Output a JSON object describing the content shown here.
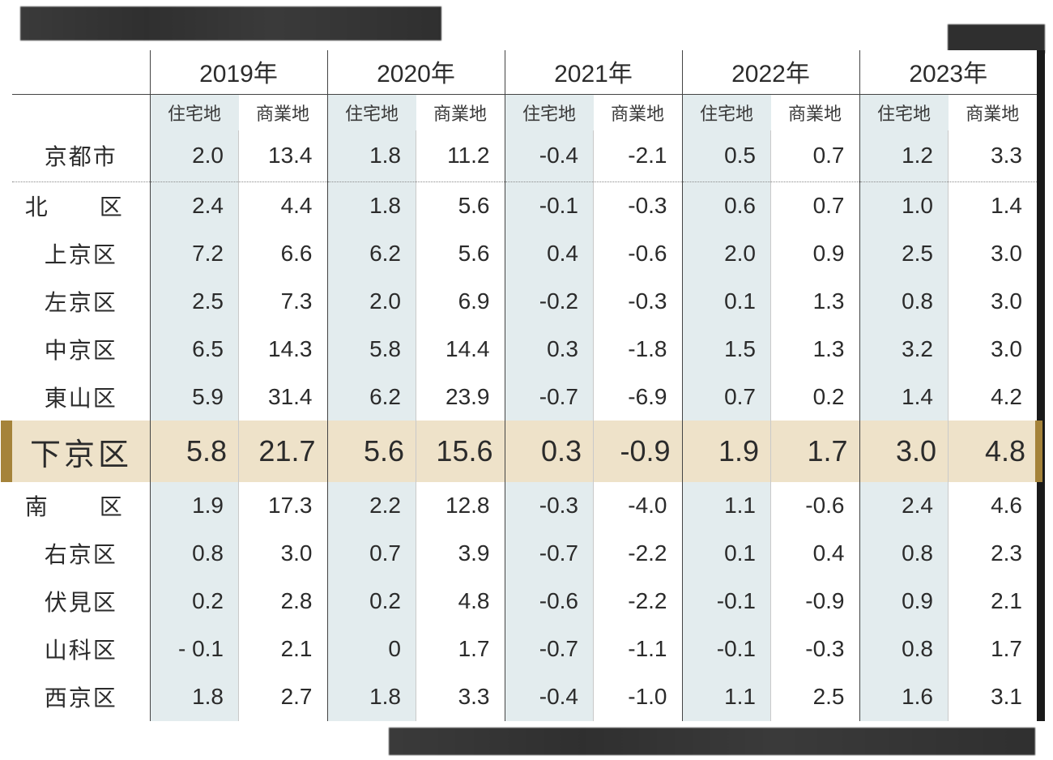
{
  "table": {
    "type": "table",
    "years": [
      "2019年",
      "2020年",
      "2021年",
      "2022年",
      "2023年"
    ],
    "sub_columns": [
      "住宅地",
      "商業地"
    ],
    "row_label_header": "",
    "rows": [
      {
        "label": "京都市",
        "values": [
          "2.0",
          "13.4",
          "1.8",
          "11.2",
          "-0.4",
          "-2.1",
          "0.5",
          "0.7",
          "1.2",
          "3.3"
        ],
        "class": "row-city"
      },
      {
        "label": "北　区",
        "values": [
          "2.4",
          "4.4",
          "1.8",
          "5.6",
          "-0.1",
          "-0.3",
          "0.6",
          "0.7",
          "1.0",
          "1.4"
        ],
        "label_class": "spaced-2"
      },
      {
        "label": "上京区",
        "values": [
          "7.2",
          "6.6",
          "6.2",
          "5.6",
          "0.4",
          "-0.6",
          "2.0",
          "0.9",
          "2.5",
          "3.0"
        ]
      },
      {
        "label": "左京区",
        "values": [
          "2.5",
          "7.3",
          "2.0",
          "6.9",
          "-0.2",
          "-0.3",
          "0.1",
          "1.3",
          "0.8",
          "3.0"
        ]
      },
      {
        "label": "中京区",
        "values": [
          "6.5",
          "14.3",
          "5.8",
          "14.4",
          "0.3",
          "-1.8",
          "1.5",
          "1.3",
          "3.2",
          "3.0"
        ]
      },
      {
        "label": "東山区",
        "values": [
          "5.9",
          "31.4",
          "6.2",
          "23.9",
          "-0.7",
          "-6.9",
          "0.7",
          "0.2",
          "1.4",
          "4.2"
        ]
      },
      {
        "label": "下京区",
        "values": [
          "5.8",
          "21.7",
          "5.6",
          "15.6",
          "0.3",
          "-0.9",
          "1.9",
          "1.7",
          "3.0",
          "4.8"
        ],
        "class": "row-highlight"
      },
      {
        "label": "南　区",
        "values": [
          "1.9",
          "17.3",
          "2.2",
          "12.8",
          "-0.3",
          "-4.0",
          "1.1",
          "-0.6",
          "2.4",
          "4.6"
        ],
        "label_class": "spaced-2"
      },
      {
        "label": "右京区",
        "values": [
          "0.8",
          "3.0",
          "0.7",
          "3.9",
          "-0.7",
          "-2.2",
          "0.1",
          "0.4",
          "0.8",
          "2.3"
        ]
      },
      {
        "label": "伏見区",
        "values": [
          "0.2",
          "2.8",
          "0.2",
          "4.8",
          "-0.6",
          "-2.2",
          "-0.1",
          "-0.9",
          "0.9",
          "2.1"
        ]
      },
      {
        "label": "山科区",
        "values": [
          "- 0.1",
          "2.1",
          "0",
          "1.7",
          "-0.7",
          "-1.1",
          "-0.1",
          "-0.3",
          "0.8",
          "1.7"
        ]
      },
      {
        "label": "西京区",
        "values": [
          "1.8",
          "2.7",
          "1.8",
          "3.3",
          "-0.4",
          "-1.0",
          "1.1",
          "2.5",
          "1.6",
          "3.1"
        ]
      }
    ],
    "highlight_index": 6,
    "colors": {
      "shade_bg": "#e3ecee",
      "highlight_bg": "#eee2c9",
      "highlight_bar": "#a5833a",
      "text": "#2b2b2b",
      "border_strong": "#444444",
      "border_light": "#c9c9c9",
      "background": "#ffffff"
    },
    "label_fontsize": 28,
    "data_fontsize": 28,
    "highlight_fontsize": 36,
    "year_fontsize": 30,
    "sub_fontsize": 22
  }
}
